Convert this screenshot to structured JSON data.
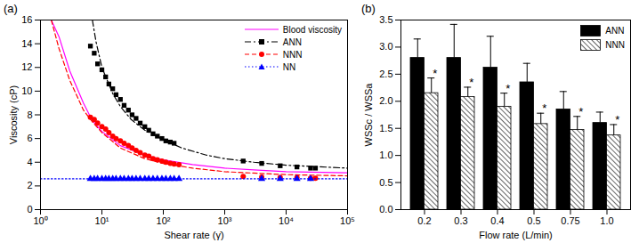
{
  "chart_data": [
    {
      "type": "scatter",
      "panel_label": "(a)",
      "x_label": "Shear rate (γ̇)",
      "y_label": "Viscosity (cP)",
      "log": "x",
      "xlim": [
        1,
        100000
      ],
      "xticks": [
        {
          "value": 1,
          "label": "10⁰"
        },
        {
          "value": 10,
          "label": "10¹"
        },
        {
          "value": 100,
          "label": "10²"
        },
        {
          "value": 1000,
          "label": "10³"
        },
        {
          "value": 10000,
          "label": "10⁴"
        },
        {
          "value": 100000,
          "label": "10⁵"
        }
      ],
      "ylim": [
        0,
        16
      ],
      "yticks": [
        0,
        2,
        4,
        6,
        8,
        10,
        12,
        14,
        16
      ],
      "legend": "upper right",
      "grid": false,
      "series": [
        {
          "name": "Blood viscosity",
          "type": "line",
          "color": "#ff00ff",
          "line_style": "solid",
          "x": [
            1.5,
            2,
            3,
            5,
            7,
            10,
            20,
            50,
            100,
            300,
            1000,
            3000,
            10000,
            100000
          ],
          "values": [
            16,
            14.6,
            11.7,
            9,
            7.5,
            6.6,
            5.4,
            4.6,
            4.2,
            3.8,
            3.5,
            3.35,
            3.2,
            3.1
          ]
        },
        {
          "name": "ANN",
          "type": "scatter",
          "color": "#000000",
          "line_style": "dashdot",
          "marker": "square",
          "x": [
            6.5,
            7.5,
            8.5,
            10,
            11.5,
            13,
            15,
            17,
            20,
            23,
            27,
            31,
            36,
            42,
            50,
            58,
            68,
            80,
            95,
            110,
            130,
            150,
            2000,
            4000,
            8000,
            15000,
            25000,
            30000
          ],
          "values": [
            13.8,
            13.2,
            12.3,
            11.8,
            11.2,
            10.6,
            10.2,
            9.7,
            9.3,
            8.8,
            8.4,
            8.0,
            7.7,
            7.3,
            7.0,
            6.7,
            6.4,
            6.2,
            6.0,
            5.8,
            5.7,
            5.6,
            4.1,
            3.9,
            3.7,
            3.6,
            3.5,
            3.5
          ],
          "fit_x": [
            7,
            8,
            10,
            15,
            20,
            30,
            50,
            100,
            200,
            500,
            1000,
            3000,
            10000,
            100000
          ],
          "fit_values": [
            16,
            14.2,
            12,
            9.8,
            8.7,
            7.6,
            6.7,
            5.9,
            5.2,
            4.6,
            4.3,
            4.0,
            3.75,
            3.5
          ]
        },
        {
          "name": "NNN",
          "type": "scatter",
          "color": "#ff0000",
          "line_style": "dashed",
          "marker": "circle",
          "x": [
            6.5,
            7.5,
            8.5,
            10,
            11.5,
            13,
            15,
            17,
            20,
            23,
            27,
            31,
            36,
            42,
            50,
            58,
            68,
            80,
            95,
            110,
            130,
            150,
            180,
            2000,
            4000,
            8000,
            15000,
            25000,
            30000
          ],
          "values": [
            7.8,
            7.6,
            7.3,
            7.0,
            6.8,
            6.5,
            6.2,
            6.0,
            5.8,
            5.6,
            5.4,
            5.2,
            5.0,
            4.8,
            4.6,
            4.5,
            4.3,
            4.2,
            4.1,
            4.0,
            3.9,
            3.85,
            3.8,
            2.8,
            2.75,
            2.7,
            2.7,
            2.65,
            2.65
          ],
          "fit_x": [
            1.5,
            2,
            3,
            5,
            7,
            10,
            20,
            50,
            100,
            300,
            1000,
            10000,
            100000
          ],
          "fit_values": [
            16,
            13.6,
            10.9,
            8.4,
            7.4,
            6.5,
            5.2,
            4.3,
            3.9,
            3.5,
            3.2,
            2.95,
            2.85
          ]
        },
        {
          "name": "NN",
          "type": "scatter",
          "color": "#0000ff",
          "line_style": "dotted",
          "marker": "triangle",
          "x": [
            6.5,
            7.5,
            8.5,
            10,
            11.5,
            13,
            15,
            17,
            20,
            23,
            27,
            31,
            36,
            42,
            50,
            58,
            68,
            80,
            95,
            110,
            130,
            150,
            180,
            4000,
            8000,
            15000,
            25000
          ],
          "values": [
            2.6,
            2.6,
            2.6,
            2.6,
            2.6,
            2.6,
            2.6,
            2.6,
            2.6,
            2.6,
            2.6,
            2.6,
            2.6,
            2.6,
            2.6,
            2.6,
            2.6,
            2.6,
            2.6,
            2.6,
            2.6,
            2.6,
            2.6,
            2.6,
            2.6,
            2.6,
            2.6
          ],
          "fit_x": [
            1,
            100000
          ],
          "fit_values": [
            2.6,
            2.6
          ]
        }
      ]
    },
    {
      "type": "bar",
      "panel_label": "(b)",
      "x_label": "Flow rate (L/min)",
      "y_label": "WSSc / WSSa",
      "categories": [
        "0.2",
        "0.3",
        "0.4",
        "0.5",
        "0.75",
        "1.0"
      ],
      "ylim": [
        0,
        3.5
      ],
      "yticks": [
        {
          "value": 0,
          "label": "0.0"
        },
        0.5,
        {
          "value": 1,
          "label": "1.0"
        },
        1.5,
        {
          "value": 2,
          "label": "2.0"
        },
        2.5,
        {
          "value": 3,
          "label": "3.0"
        },
        3.5
      ],
      "legend": "upper right",
      "grid": false,
      "series": [
        {
          "name": "ANN",
          "color": "#000000",
          "values": [
            2.8,
            2.8,
            2.62,
            2.35,
            1.85,
            1.6
          ],
          "errors": [
            0.35,
            0.62,
            0.58,
            0.35,
            0.33,
            0.2
          ]
        },
        {
          "name": "NNN",
          "color": "#000000",
          "values": [
            2.15,
            2.08,
            1.9,
            1.58,
            1.47,
            1.37
          ],
          "errors": [
            0.28,
            0.18,
            0.25,
            0.2,
            0.25,
            0.2
          ],
          "annotation": "*"
        }
      ]
    }
  ]
}
